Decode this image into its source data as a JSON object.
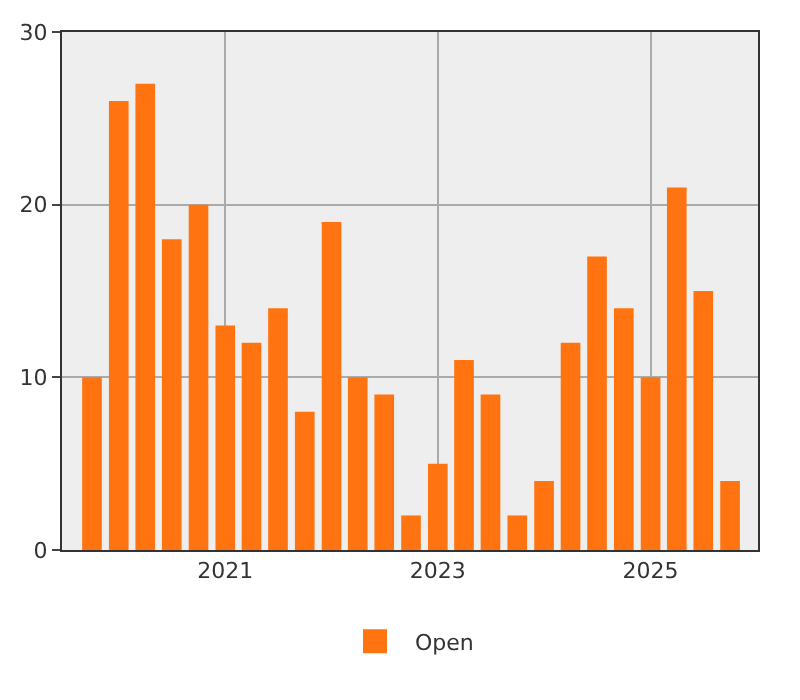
{
  "chart_data": {
    "type": "bar",
    "x": [
      "2019-10",
      "2020-01",
      "2020-04",
      "2020-07",
      "2020-10",
      "2021-01",
      "2021-04",
      "2021-07",
      "2021-10",
      "2022-01",
      "2022-04",
      "2022-07",
      "2022-10",
      "2023-01",
      "2023-04",
      "2023-07",
      "2023-10",
      "2024-01",
      "2024-04",
      "2024-07",
      "2024-10",
      "2025-01",
      "2025-04",
      "2025-07",
      "2025-10"
    ],
    "series": [
      {
        "name": "Open",
        "color": "#ff7410",
        "values": [
          10,
          26,
          27,
          18,
          20,
          13,
          12,
          14,
          8,
          19,
          10,
          9,
          2,
          5,
          11,
          9,
          2,
          4,
          12,
          17,
          14,
          10,
          21,
          15,
          4
        ]
      }
    ],
    "xlim": [
      "2019-06-20",
      "2026-01-05"
    ],
    "xticks": [
      {
        "value": "2021-01-01",
        "label": "2021"
      },
      {
        "value": "2023-01-01",
        "label": "2023"
      },
      {
        "value": "2025-01-01",
        "label": "2025"
      }
    ],
    "ylim": [
      0,
      30
    ],
    "yticks": [
      0,
      10,
      20,
      30
    ],
    "grid": true,
    "legend": "bottom"
  }
}
